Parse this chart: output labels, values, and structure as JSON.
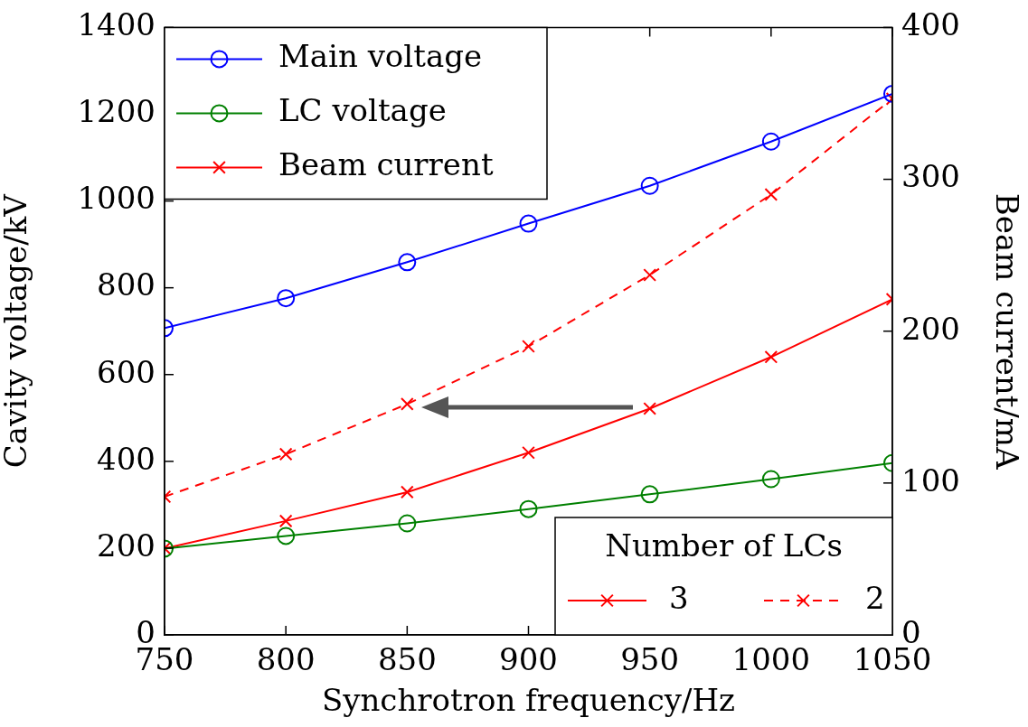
{
  "chart_data": {
    "type": "line",
    "xlabel": "Synchrotron frequency/Hz",
    "ylabel": "Cavity voltage/kV",
    "y2label": "Beam current/mA",
    "x": [
      750,
      800,
      850,
      900,
      950,
      1000,
      1050
    ],
    "xlim": [
      750,
      1050
    ],
    "xticks": [
      750,
      800,
      850,
      900,
      950,
      1000,
      1050
    ],
    "ylim": [
      0,
      1400
    ],
    "yticks": [
      0,
      200,
      400,
      600,
      800,
      1000,
      1200,
      1400
    ],
    "y2lim": [
      0,
      400
    ],
    "y2ticks": [
      0,
      100,
      200,
      300,
      400
    ],
    "legend": "top left",
    "legend_title": "Number of LCs",
    "grid": false,
    "annotations": [
      "3",
      "2"
    ],
    "series": [
      {
        "name": "Main voltage",
        "color": "#0000ff",
        "marker": "circle",
        "line_style": "solid",
        "values": [
          707,
          776,
          859,
          948,
          1035,
          1137,
          1247
        ]
      },
      {
        "name": "LC voltage",
        "color": "#008000",
        "marker": "circle",
        "line_style": "solid",
        "values": [
          199,
          228,
          257,
          290,
          324,
          359,
          396
        ]
      },
      {
        "name": "Beam current",
        "color": "#ff0000",
        "marker": "cross",
        "line_style": "solid",
        "axis": "y2",
        "values": [
          57,
          75,
          94,
          120,
          149,
          183,
          221
        ]
      },
      {
        "color": "#ff0000",
        "marker": "cross",
        "line_style": "dashed",
        "axis": "y2",
        "values": [
          91,
          119,
          152,
          190,
          237,
          290,
          353
        ]
      }
    ]
  }
}
